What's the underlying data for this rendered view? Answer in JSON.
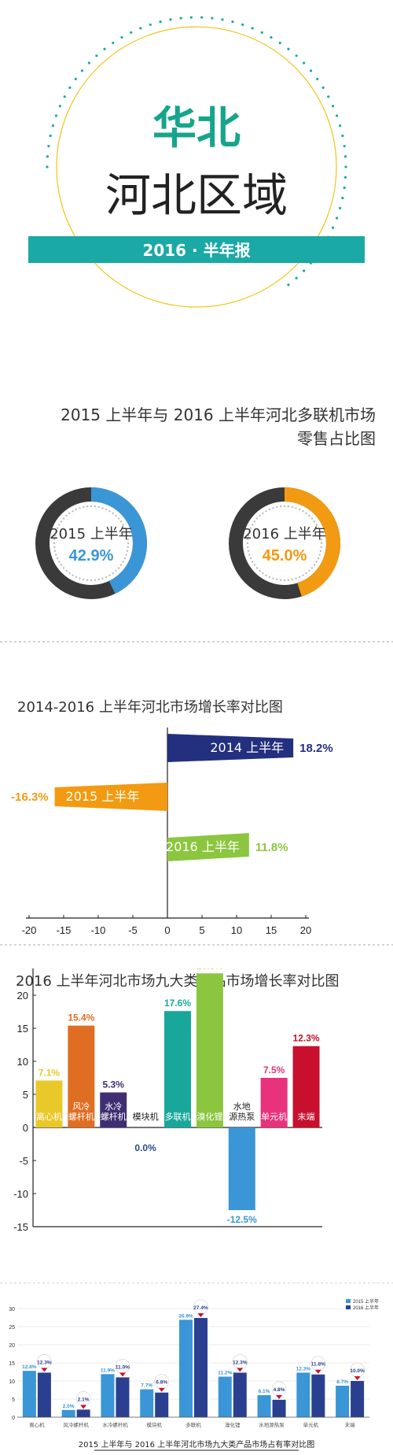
{
  "header": {
    "region": "华北",
    "area": "河北区域",
    "banner": "2016 · 半年报",
    "colors": {
      "green": "#16a58b",
      "banner": "#1ba9a5",
      "ring": "#1ba9a5"
    }
  },
  "section1": {
    "title_line1": "2015 上半年与 2016 上半年河北多联机市场",
    "title_line2": "零售占比图",
    "charts": [
      {
        "label": "2015 上半年",
        "value_text": "42.9%",
        "value": 42.9,
        "color": "#3a96d6"
      },
      {
        "label": "2016 上半年",
        "value_text": "45.0%",
        "value": 45.0,
        "color": "#f29a11"
      }
    ],
    "track_color": "#3a3a3a"
  },
  "section2": {
    "title": "2014-2016 上半年河北市场增长率对比图"
  },
  "section3": {
    "title": "2016 上半年河北市场九大类产品市场增长率对比图"
  },
  "section4": {
    "legend": [
      "2015 上半年",
      "2016 上半年"
    ],
    "caption": "2015 上半年与 2016 上半年河北市场九大类产品市场占有率对比图"
  },
  "chart_data": [
    {
      "type": "pie",
      "title": "2015 上半年与 2016 上半年河北多联机市场零售占比图",
      "categories": [
        "2015 上半年",
        "2016 上半年"
      ],
      "values": [
        42.9,
        45.0
      ],
      "unit": "%"
    },
    {
      "type": "bar",
      "orientation": "horizontal",
      "title": "2014-2016 上半年河北市场增长率对比图",
      "categories": [
        "2014 上半年",
        "2015 上半年",
        "2016 上半年"
      ],
      "values": [
        18.2,
        -16.3,
        11.8
      ],
      "value_labels": [
        "18.2%",
        "-16.3%",
        "11.8%"
      ],
      "colors": [
        "#23307f",
        "#f29a11",
        "#8cc63f"
      ],
      "xlim": [
        -20,
        20
      ],
      "xticks": [
        -20,
        -15,
        -10,
        -5,
        0,
        5,
        10,
        15,
        20
      ]
    },
    {
      "type": "bar",
      "title": "2016 上半年河北市场九大类产品市场增长率对比图",
      "categories": [
        "离心机",
        "风冷螺杆机",
        "水冷螺杆机",
        "模块机",
        "多联机",
        "溴化锂",
        "水地源热泵",
        "单元机",
        "末端"
      ],
      "values": [
        7.1,
        15.4,
        5.3,
        0.0,
        17.6,
        23.3,
        -12.5,
        7.5,
        12.3
      ],
      "value_labels": [
        "7.1%",
        "15.4%",
        "5.3%",
        "0.0%",
        "17.6%",
        "23.3%",
        "-12.5%",
        "7.5%",
        "12.3%"
      ],
      "colors": [
        "#e9c82a",
        "#e06e22",
        "#3f2f72",
        "#2a4d8f",
        "#1aa79b",
        "#8cc63f",
        "#3a96d6",
        "#e8327c",
        "#c8102e"
      ],
      "ylim": [
        -15,
        25
      ],
      "yticks": [
        -15,
        -10,
        -5,
        0,
        5,
        10,
        15,
        20,
        25
      ]
    },
    {
      "type": "bar",
      "title": "2015 上半年与 2016 上半年河北市场九大类产品市场占有率对比图",
      "categories": [
        "离心机",
        "风冷螺杆机",
        "水冷螺杆机",
        "模块机",
        "多联机",
        "溴化锂",
        "水地源热泵",
        "单元机",
        "末端"
      ],
      "series": [
        {
          "name": "2015 上半年",
          "values": [
            12.8,
            2.0,
            11.9,
            7.7,
            26.9,
            11.2,
            6.1,
            12.3,
            8.7
          ],
          "labels": [
            "12.8%",
            "2.0%",
            "11.9%",
            "7.7%",
            "26.9%",
            "11.2%",
            "6.1%",
            "12.3%",
            "8.7%"
          ],
          "color": "#3a96d6"
        },
        {
          "name": "2016 上半年",
          "values": [
            12.3,
            2.1,
            11.0,
            6.8,
            27.4,
            12.3,
            4.8,
            11.8,
            10.0
          ],
          "labels": [
            "12.3%",
            "2.1%",
            "11.0%",
            "6.8%",
            "27.4%",
            "12.3%",
            "4.8%",
            "11.8%",
            "10.0%"
          ],
          "color": "#2a3f8f"
        }
      ],
      "ylim": [
        0,
        30
      ],
      "yticks": [
        0,
        5,
        10,
        15,
        20,
        25,
        30
      ]
    }
  ]
}
